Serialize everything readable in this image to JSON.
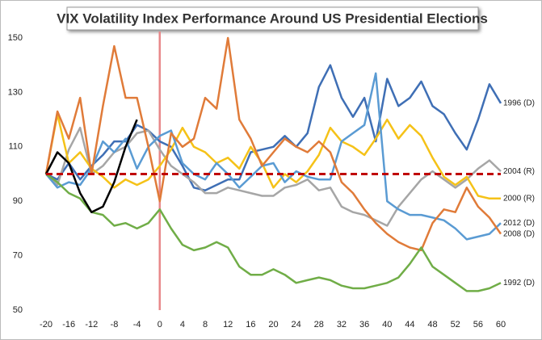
{
  "chart_data": {
    "type": "line",
    "title": "VIX Volatility Index Performance Around US Presidential Elections",
    "x": [
      -20,
      -18,
      -16,
      -14,
      -12,
      -10,
      -8,
      -6,
      -4,
      -2,
      0,
      2,
      4,
      6,
      8,
      10,
      12,
      14,
      16,
      18,
      20,
      22,
      24,
      26,
      28,
      30,
      32,
      34,
      36,
      38,
      40,
      42,
      44,
      46,
      48,
      50,
      52,
      54,
      56,
      58,
      60
    ],
    "xlim": [
      -20,
      60
    ],
    "xticks": [
      -20,
      -16,
      -12,
      -8,
      -4,
      0,
      4,
      8,
      12,
      16,
      20,
      24,
      28,
      32,
      36,
      40,
      44,
      48,
      52,
      56,
      60
    ],
    "ylim": [
      50,
      150
    ],
    "yticks": [
      50,
      70,
      90,
      110,
      130,
      150
    ],
    "hline": {
      "value": 100,
      "color": "#c00000"
    },
    "vline": {
      "value": 0,
      "color": "#e8888a"
    },
    "series": [
      {
        "name": "1996 (D)",
        "color": "#3f6fb5",
        "values": [
          100,
          98,
          104,
          98,
          103,
          107,
          112,
          112,
          118,
          116,
          112,
          110,
          103,
          95,
          94,
          96,
          98,
          98,
          108,
          109,
          110,
          114,
          110,
          115,
          132,
          140,
          128,
          121,
          128,
          112,
          135,
          125,
          128,
          134,
          125,
          122,
          115,
          109,
          120,
          133,
          126
        ]
      },
      {
        "name": "2004 (R)",
        "color": "#a6a6a6",
        "values": [
          100,
          96,
          109,
          117,
          100,
          103,
          108,
          110,
          115,
          116,
          109,
          103,
          100,
          97,
          93,
          93,
          95,
          94,
          93,
          92,
          92,
          95,
          96,
          98,
          94,
          95,
          88,
          86,
          85,
          83,
          81,
          88,
          93,
          98,
          101,
          98,
          95,
          98,
          102,
          105,
          101
        ]
      },
      {
        "name": "2000 (R)",
        "color": "#f5c218",
        "values": [
          100,
          122,
          104,
          108,
          102,
          99,
          95,
          98,
          96,
          98,
          103,
          109,
          117,
          110,
          108,
          104,
          106,
          102,
          110,
          104,
          95,
          100,
          97,
          101,
          107,
          117,
          112,
          110,
          107,
          113,
          120,
          113,
          118,
          114,
          106,
          99,
          96,
          99,
          92,
          91,
          91
        ]
      },
      {
        "name": "2012 (D)",
        "color": "#5a9bd3",
        "values": [
          100,
          95,
          97,
          96,
          102,
          112,
          108,
          113,
          102,
          110,
          114,
          116,
          104,
          100,
          98,
          104,
          100,
          95,
          99,
          103,
          104,
          97,
          101,
          99,
          98,
          98,
          112,
          115,
          118,
          137,
          90,
          87,
          85,
          85,
          84,
          83,
          80,
          76,
          77,
          78,
          82
        ]
      },
      {
        "name": "2008 (D)",
        "color": "#e07b39",
        "values": [
          100,
          123,
          113,
          128,
          100,
          125,
          147,
          128,
          128,
          110,
          90,
          115,
          110,
          113,
          128,
          124,
          150,
          120,
          113,
          103,
          108,
          113,
          110,
          108,
          112,
          108,
          97,
          93,
          87,
          82,
          78,
          75,
          73,
          72,
          82,
          87,
          86,
          95,
          88,
          84,
          78
        ]
      },
      {
        "name": "1992 (D)",
        "color": "#70ad47",
        "values": [
          100,
          97,
          93,
          91,
          86,
          85,
          81,
          82,
          80,
          82,
          87,
          80,
          74,
          72,
          73,
          75,
          73,
          66,
          63,
          63,
          65,
          63,
          60,
          61,
          62,
          61,
          59,
          58,
          58,
          59,
          60,
          62,
          67,
          73,
          66,
          63,
          60,
          57,
          57,
          58,
          60
        ]
      },
      {
        "color": "#000000",
        "values": [
          100,
          108,
          104,
          93,
          86,
          88,
          97,
          110,
          120,
          null,
          null,
          null,
          null,
          null,
          null,
          null,
          null,
          null,
          null,
          null,
          null,
          null,
          null,
          null,
          null,
          null,
          null,
          null,
          null,
          null,
          null,
          null,
          null,
          null,
          null,
          null,
          null,
          null,
          null,
          null,
          null
        ]
      }
    ]
  }
}
